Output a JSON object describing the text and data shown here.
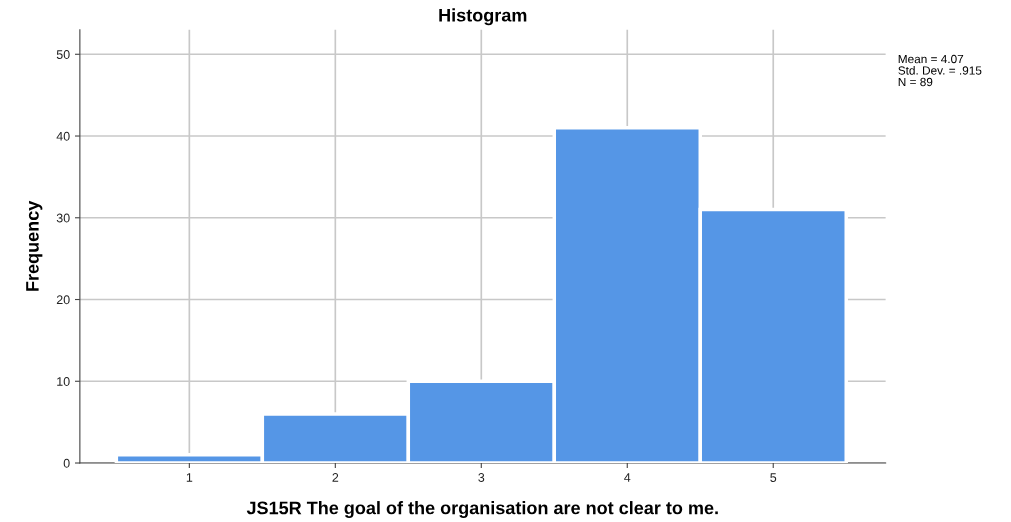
{
  "chart_data": {
    "type": "histogram",
    "title": "Histogram",
    "xlabel": "JS15R The goal of the organisation are not clear to me.",
    "ylabel": "Frequency",
    "bins": [
      0.5,
      1.5,
      2.5,
      3.5,
      4.5,
      5.5
    ],
    "values": [
      1,
      6,
      10,
      41,
      31
    ],
    "color": "#5596e6",
    "xlim": [
      0.25,
      5.77
    ],
    "xticks": [
      1,
      2,
      3,
      4,
      5
    ],
    "ylim": [
      0,
      53
    ],
    "yticks": [
      0,
      10,
      20,
      30,
      40,
      50
    ],
    "grid": true,
    "annotations": [
      "Mean = 4.07",
      "Std. Dev. = .915",
      "N = 89"
    ]
  }
}
